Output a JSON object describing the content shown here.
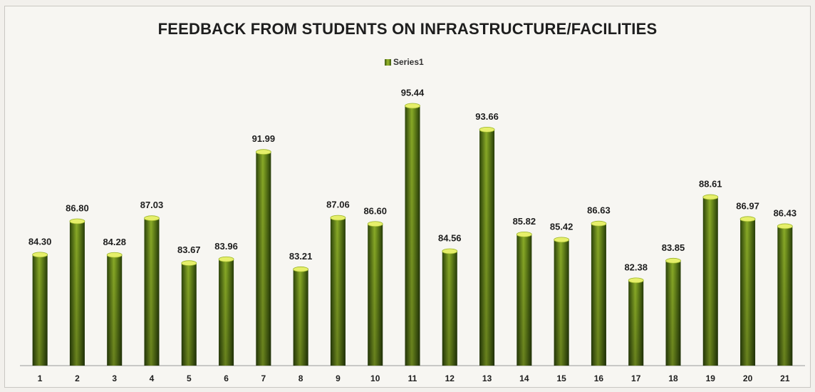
{
  "chart_data": {
    "type": "bar",
    "title": "FEEDBACK FROM STUDENTS ON INFRASTRUCTURE/FACILITIES",
    "legend": {
      "position": "top",
      "entries": [
        "Series1"
      ]
    },
    "categories": [
      "1",
      "2",
      "3",
      "4",
      "5",
      "6",
      "7",
      "8",
      "9",
      "10",
      "11",
      "12",
      "13",
      "14",
      "15",
      "16",
      "17",
      "18",
      "19",
      "20",
      "21"
    ],
    "series": [
      {
        "name": "Series1",
        "values": [
          84.3,
          86.8,
          84.28,
          87.03,
          83.67,
          83.96,
          91.99,
          83.21,
          87.06,
          86.6,
          95.44,
          84.56,
          93.66,
          85.82,
          85.42,
          86.63,
          82.38,
          83.85,
          88.61,
          86.97,
          86.43
        ],
        "labels": [
          "84.30",
          "86.80",
          "84.28",
          "87.03",
          "83.67",
          "83.96",
          "91.99",
          "83.21",
          "87.06",
          "86.60",
          "95.44",
          "84.56",
          "93.66",
          "85.82",
          "85.42",
          "86.63",
          "82.38",
          "83.85",
          "88.61",
          "86.97",
          "86.43"
        ]
      }
    ],
    "xlabel": "",
    "ylabel": "",
    "ylim": [
      76,
      96
    ],
    "grid": false,
    "colors": {
      "bar_dark": "#2f4a0a",
      "bar_light": "#8fb12a",
      "bar_top": "#e6ef6a"
    }
  }
}
